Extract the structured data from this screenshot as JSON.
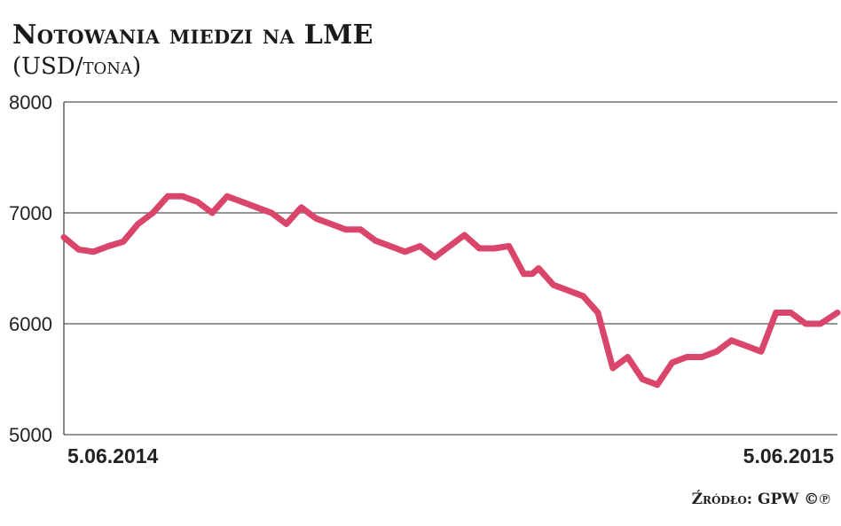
{
  "chart_data": {
    "type": "line",
    "title": "Notowania miedzi na LME",
    "subtitle": "(USD/tona)",
    "ylim": [
      5000,
      8000
    ],
    "yticks": [
      5000,
      6000,
      7000,
      8000
    ],
    "ytick_labels": [
      "5000",
      "6000",
      "7000",
      "8000"
    ],
    "xlim": [
      "2014-06-05",
      "2015-06-05"
    ],
    "xtick_labels": [
      "5.06.2014",
      "5.06.2015"
    ],
    "grid": true,
    "legend": "none",
    "line_color": "#d9456b",
    "series": [
      {
        "x": [
          "2014-06-05",
          "2014-06-12",
          "2014-06-19",
          "2014-06-26",
          "2014-07-03",
          "2014-07-10",
          "2014-07-17",
          "2014-07-24",
          "2014-07-31",
          "2014-08-07",
          "2014-08-14",
          "2014-08-21",
          "2014-08-28",
          "2014-09-04",
          "2014-09-11",
          "2014-09-18",
          "2014-09-25",
          "2014-10-02",
          "2014-10-09",
          "2014-10-16",
          "2014-10-23",
          "2014-10-30",
          "2014-11-06",
          "2014-11-13",
          "2014-11-20",
          "2014-11-27",
          "2014-12-04",
          "2014-12-11",
          "2014-12-18",
          "2014-12-25",
          "2015-01-01",
          "2015-01-08",
          "2015-01-12",
          "2015-01-15",
          "2015-01-22",
          "2015-01-29",
          "2015-02-05",
          "2015-02-12",
          "2015-02-19",
          "2015-02-26",
          "2015-03-05",
          "2015-03-12",
          "2015-03-19",
          "2015-03-26",
          "2015-04-02",
          "2015-04-09",
          "2015-04-16",
          "2015-04-23",
          "2015-04-30",
          "2015-05-07",
          "2015-05-14",
          "2015-05-21",
          "2015-05-28",
          "2015-06-05"
        ],
        "y": [
          6780,
          6670,
          6650,
          6700,
          6740,
          6900,
          7000,
          7150,
          7150,
          7100,
          7000,
          7150,
          7100,
          7050,
          7000,
          6900,
          7050,
          6950,
          6900,
          6850,
          6850,
          6750,
          6700,
          6650,
          6700,
          6600,
          6700,
          6800,
          6680,
          6680,
          6700,
          6450,
          6450,
          6500,
          6350,
          6300,
          6250,
          6100,
          5600,
          5700,
          5500,
          5450,
          5650,
          5700,
          5700,
          5750,
          5850,
          5800,
          5750,
          6100,
          6100,
          6000,
          6000,
          6100
        ]
      }
    ]
  },
  "source": "Źródło: GPW ©℗"
}
